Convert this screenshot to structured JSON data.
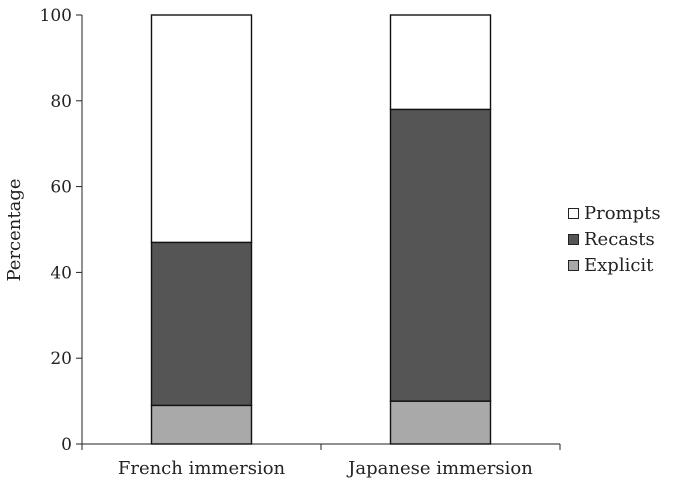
{
  "chart_data": {
    "type": "bar",
    "stacked": true,
    "categories": [
      "French immersion",
      "Japanese immersion"
    ],
    "series": [
      {
        "name": "Explicit",
        "values": [
          9,
          10
        ],
        "color": "#a9a9a9"
      },
      {
        "name": "Recasts",
        "values": [
          38,
          68
        ],
        "color": "#555555"
      },
      {
        "name": "Prompts",
        "values": [
          53,
          22
        ],
        "color": "#ffffff"
      }
    ],
    "legend_order": [
      "Prompts",
      "Recasts",
      "Explicit"
    ],
    "ylabel": "Percentage",
    "ylim": [
      0,
      100
    ],
    "yticks": [
      0,
      20,
      40,
      60,
      80,
      100
    ],
    "grid": false,
    "legend_position": "right"
  }
}
